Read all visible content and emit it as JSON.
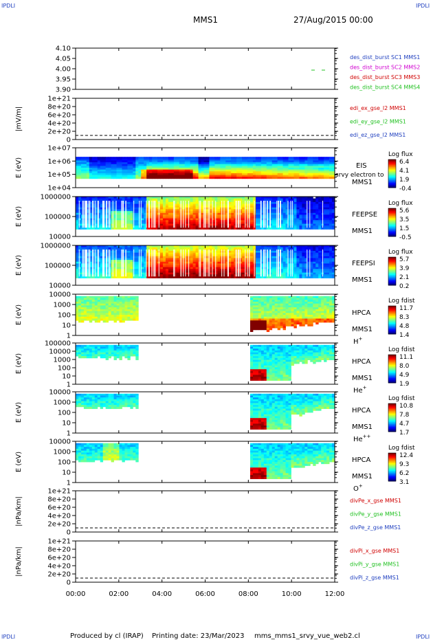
{
  "corners": {
    "tl": "IPDLI",
    "tr": "IPDLI",
    "bl": "IPDLI",
    "br": "IPDLI"
  },
  "header": {
    "spacecraft": "MMS1",
    "datetime": "27/Aug/2015 00:00"
  },
  "footer": {
    "producer": "Produced by cl (IRAP)",
    "printing_date": "Printing date: 23/Mar/2023",
    "file": "mms_mms1_srvy_vue_web2.cl"
  },
  "colors": {
    "blue": "#1f3fbf",
    "magenta": "#d000d0",
    "red": "#d00000",
    "green": "#20c020"
  },
  "time_axis": {
    "ticks": [
      "00:00",
      "02:00",
      "04:00",
      "06:00",
      "08:00",
      "10:00",
      "12:00"
    ]
  },
  "chart_data": [
    {
      "id": "p1",
      "type": "scatter",
      "ylabel": "",
      "ylim": [
        3.9,
        4.1
      ],
      "yticks": [
        "4.10",
        "4.05",
        "4.00",
        "3.95",
        "3.90"
      ],
      "legend": [
        {
          "text": "des_dist_burst SC1 MMS1",
          "color": "#1f3fbf"
        },
        {
          "text": "des_dist_burst SC2 MMS2",
          "color": "#d000d0"
        },
        {
          "text": "des_dist_burst SC3 MMS3",
          "color": "#d00000"
        },
        {
          "text": "des_dist_burst SC4 MMS4",
          "color": "#20c020"
        }
      ]
    },
    {
      "id": "p2",
      "type": "line",
      "ylabel": "|mV/m|",
      "yticks": [
        "1e+21",
        "8e+20",
        "6e+20",
        "4e+20",
        "2e+20",
        "0"
      ],
      "legend": [
        {
          "text": "edi_ex_gse_l2 MMS1",
          "color": "#d00000"
        },
        {
          "text": "edi_ey_gse_l2 MMS1",
          "color": "#20c020"
        },
        {
          "text": "edi_ez_gse_l2 MMS1",
          "color": "#1f3fbf"
        }
      ]
    },
    {
      "id": "p3",
      "type": "heatmap",
      "ylabel": "E (eV)",
      "yticks": [
        "1e+07",
        "1e+06",
        "1e+05",
        "1e+04"
      ],
      "labels": [
        "EIS",
        "MMS1"
      ],
      "overflow_label": "srvy electron to",
      "cb_title": "Log flux",
      "cb_ticks": [
        "6.4",
        "4.1",
        "1.9",
        "-0.4"
      ]
    },
    {
      "id": "p4",
      "type": "heatmap",
      "ylabel": "E (eV)",
      "yticks": [
        "1000000",
        "100000",
        "10000"
      ],
      "labels": [
        "FEEPSE",
        "MMS1"
      ],
      "cb_title": "Log flux",
      "cb_ticks": [
        "5.6",
        "3.5",
        "1.5",
        "-0.5"
      ]
    },
    {
      "id": "p5",
      "type": "heatmap",
      "ylabel": "E (eV)",
      "yticks": [
        "1000000",
        "100000",
        "10000"
      ],
      "labels": [
        "FEEPSI",
        "MMS1"
      ],
      "cb_title": "Log flux",
      "cb_ticks": [
        "5.7",
        "3.9",
        "2.1",
        "0.2"
      ]
    },
    {
      "id": "p6",
      "type": "heatmap",
      "ylabel": "E (eV)",
      "yticks": [
        "10000",
        "1000",
        "100",
        "10",
        "1"
      ],
      "labels": [
        "HPCA",
        "MMS1"
      ],
      "species": "H",
      "species_sup": "+",
      "cb_title": "Log fdist",
      "cb_ticks": [
        "11.7",
        "8.3",
        "4.8",
        "1.4"
      ]
    },
    {
      "id": "p7",
      "type": "heatmap",
      "ylabel": "E (eV)",
      "yticks": [
        "100000",
        "10000",
        "1000",
        "100",
        "10",
        "1"
      ],
      "labels": [
        "HPCA",
        "MMS1"
      ],
      "species": "He",
      "species_sup": "+",
      "cb_title": "Log fdist",
      "cb_ticks": [
        "11.1",
        "8.0",
        "4.9",
        "1.9"
      ]
    },
    {
      "id": "p8",
      "type": "heatmap",
      "ylabel": "E (eV)",
      "yticks": [
        "10000",
        "1000",
        "100",
        "10",
        "1"
      ],
      "labels": [
        "HPCA",
        "MMS1"
      ],
      "species": "He",
      "species_sup": "++",
      "cb_title": "Log fdist",
      "cb_ticks": [
        "10.8",
        "7.8",
        "4.7",
        "1.7"
      ]
    },
    {
      "id": "p9",
      "type": "heatmap",
      "ylabel": "E (eV)",
      "yticks": [
        "10000",
        "1000",
        "100",
        "10",
        "1"
      ],
      "labels": [
        "HPCA",
        "MMS1"
      ],
      "species": "O",
      "species_sup": "+",
      "cb_title": "Log fdist",
      "cb_ticks": [
        "12.4",
        "9.3",
        "6.2",
        "3.1"
      ]
    },
    {
      "id": "p10",
      "type": "line",
      "ylabel": "|nPa/km|",
      "yticks": [
        "1e+21",
        "8e+20",
        "6e+20",
        "4e+20",
        "2e+20",
        "0"
      ],
      "legend": [
        {
          "text": "divPe_x_gse MMS1",
          "color": "#d00000"
        },
        {
          "text": "divPe_y_gse MMS1",
          "color": "#20c020"
        },
        {
          "text": "divPe_z_gse MMS1",
          "color": "#1f3fbf"
        }
      ]
    },
    {
      "id": "p11",
      "type": "line",
      "ylabel": "|nPa/km|",
      "yticks": [
        "1e+21",
        "8e+20",
        "6e+20",
        "4e+20",
        "2e+20",
        "0"
      ],
      "legend": [
        {
          "text": "divPi_x_gse MMS1",
          "color": "#d00000"
        },
        {
          "text": "divPi_y_gse MMS1",
          "color": "#20c020"
        },
        {
          "text": "divPi_z_gse MMS1",
          "color": "#1f3fbf"
        }
      ]
    }
  ]
}
